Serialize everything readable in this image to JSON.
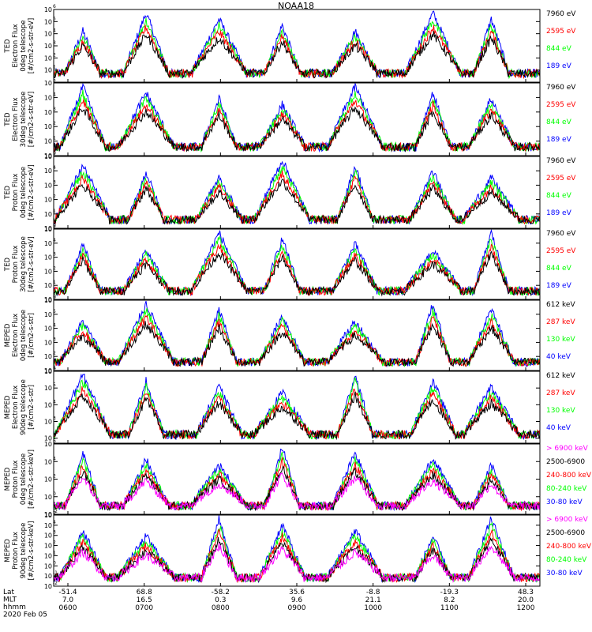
{
  "title": "NOAA18",
  "colors": {
    "black": "#000000",
    "red": "#ff0000",
    "green": "#00ff00",
    "blue": "#0000ff",
    "magenta": "#ff00ff"
  },
  "chart_data": [
    {
      "type": "line",
      "panel": "ted-electron-0deg",
      "ylabel": [
        "TED",
        "Electron Flux",
        "0deg telescope",
        "[#/cm2-s-str-eV]"
      ],
      "ytick_exponents": [
        1,
        2,
        3,
        4,
        5,
        6
      ],
      "ylim_log10": [
        0,
        6
      ],
      "legend": [
        {
          "label": "7960 eV",
          "color": "black"
        },
        {
          "label": "2595 eV",
          "color": "red"
        },
        {
          "label": "844 eV",
          "color": "green"
        },
        {
          "label": "189 eV",
          "color": "blue"
        }
      ]
    },
    {
      "type": "line",
      "panel": "ted-electron-30deg",
      "ylabel": [
        "TED",
        "Electron Flux",
        "30deg telescope",
        "[#/cm2-s-str-eV]"
      ],
      "ytick_exponents": [
        0,
        1,
        2,
        3,
        4,
        5
      ],
      "ylim_log10": [
        0,
        5
      ],
      "legend": [
        {
          "label": "7960 eV",
          "color": "black"
        },
        {
          "label": "2595 eV",
          "color": "red"
        },
        {
          "label": "844 eV",
          "color": "green"
        },
        {
          "label": "189 eV",
          "color": "blue"
        }
      ]
    },
    {
      "type": "line",
      "panel": "ted-proton-0deg",
      "ylabel": [
        "TED",
        "Proton Flux",
        "0deg telescope",
        "[#/cm2-s-str-eV]"
      ],
      "ytick_exponents": [
        0,
        1,
        2,
        3,
        4,
        5
      ],
      "ylim_log10": [
        0,
        5
      ],
      "legend": [
        {
          "label": "7960 eV",
          "color": "black"
        },
        {
          "label": "2595 eV",
          "color": "red"
        },
        {
          "label": "844 eV",
          "color": "green"
        },
        {
          "label": "189 eV",
          "color": "blue"
        }
      ]
    },
    {
      "type": "line",
      "panel": "ted-proton-30deg",
      "ylabel": [
        "TED",
        "Proton Flux",
        "30deg telescope",
        "[#/cm2-s-str-eV]"
      ],
      "ytick_exponents": [
        0,
        1,
        2,
        3,
        4,
        5
      ],
      "ylim_log10": [
        0,
        5
      ],
      "legend": [
        {
          "label": "7960 eV",
          "color": "black"
        },
        {
          "label": "2595 eV",
          "color": "red"
        },
        {
          "label": "844 eV",
          "color": "green"
        },
        {
          "label": "189 eV",
          "color": "blue"
        }
      ]
    },
    {
      "type": "line",
      "panel": "meped-electron-0deg",
      "ylabel": [
        "MEPED",
        "Electron Flux",
        "0deg telescope",
        "[#/cm2-s-str]"
      ],
      "ytick_exponents": [
        1,
        2,
        3,
        4,
        5,
        6
      ],
      "ylim_log10": [
        1,
        6
      ],
      "legend": [
        {
          "label": "612 keV",
          "color": "black"
        },
        {
          "label": "287 keV",
          "color": "red"
        },
        {
          "label": "130 keV",
          "color": "green"
        },
        {
          "label": "40 keV",
          "color": "blue"
        }
      ]
    },
    {
      "type": "line",
      "panel": "meped-electron-90deg",
      "ylabel": [
        "MEPED",
        "Electron Flux",
        "90deg telescope",
        "[#/cm2-s-str]"
      ],
      "ytick_exponents": [
        2,
        3,
        4,
        5,
        6
      ],
      "ylim_log10": [
        1.7,
        6
      ],
      "legend": [
        {
          "label": "612 keV",
          "color": "black"
        },
        {
          "label": "287 keV",
          "color": "red"
        },
        {
          "label": "130 keV",
          "color": "green"
        },
        {
          "label": "40 keV",
          "color": "blue"
        }
      ]
    },
    {
      "type": "line",
      "panel": "meped-proton-0deg",
      "ylabel": [
        "MEPED",
        "Proton Flux",
        "0deg telescope",
        "[#/cm2-s-str-keV]"
      ],
      "ytick_exponents": [
        -2,
        0,
        2,
        4,
        6
      ],
      "ylim_log10": [
        -2,
        6
      ],
      "legend": [
        {
          "label": "> 6900 keV",
          "color": "magenta"
        },
        {
          "label": "2500-6900",
          "color": "black"
        },
        {
          "label": "240-800 keV",
          "color": "red"
        },
        {
          "label": "80-240 keV",
          "color": "green"
        },
        {
          "label": "30-80 keV",
          "color": "blue"
        }
      ]
    },
    {
      "type": "line",
      "panel": "meped-proton-90deg",
      "ylabel": [
        "MEPED",
        "Proton Flux",
        "90deg telescope",
        "[#/cm2-s-str-keV]"
      ],
      "ytick_exponents": [
        -2,
        -1,
        0,
        1,
        2,
        3,
        4,
        5
      ],
      "ylim_log10": [
        -2,
        5
      ],
      "legend": [
        {
          "label": "> 6900 keV",
          "color": "magenta"
        },
        {
          "label": "2500-6900",
          "color": "black"
        },
        {
          "label": "240-800 keV",
          "color": "red"
        },
        {
          "label": "80-240 keV",
          "color": "green"
        },
        {
          "label": "30-80 keV",
          "color": "blue"
        }
      ]
    }
  ],
  "x_axis": {
    "row_labels": [
      "Lat",
      "MLT",
      "hhmm",
      "2020 Feb 05"
    ],
    "ticks": [
      {
        "lat": "-51.4",
        "mlt": "7.0",
        "hhmm": "0600"
      },
      {
        "lat": "68.8",
        "mlt": "16.5",
        "hhmm": "0700"
      },
      {
        "lat": "-58.2",
        "mlt": "0.3",
        "hhmm": "0800"
      },
      {
        "lat": "35.6",
        "mlt": "9.6",
        "hhmm": "0900"
      },
      {
        "lat": "-8.8",
        "mlt": "21.1",
        "hhmm": "1000"
      },
      {
        "lat": "-19.3",
        "mlt": "8.2",
        "hhmm": "1100"
      },
      {
        "lat": "48.3",
        "mlt": "20.0",
        "hhmm": "1200"
      }
    ]
  }
}
